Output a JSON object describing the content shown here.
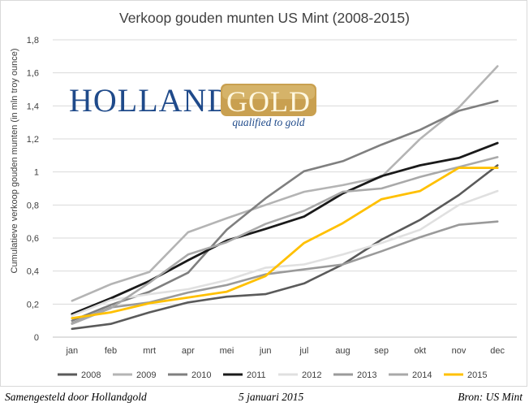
{
  "chart_data": {
    "type": "line",
    "title": "Verkoop gouden munten US Mint (2008-2015)",
    "xlabel": "",
    "ylabel": "Cumulatieve verkoop gouden munten (in mln troy ounce)",
    "categories": [
      "jan",
      "feb",
      "mrt",
      "apr",
      "mei",
      "jun",
      "jul",
      "aug",
      "sep",
      "okt",
      "nov",
      "dec"
    ],
    "ylim": [
      0,
      1.8
    ],
    "yticks": [
      0,
      0.2,
      0.4,
      0.6,
      0.8,
      1,
      1.2,
      1.4,
      1.6,
      1.8
    ],
    "ytick_labels": [
      "0",
      "0,2",
      "0,4",
      "0,6",
      "0,8",
      "1",
      "1,2",
      "1,4",
      "1,6",
      "1,8"
    ],
    "grid": true,
    "legend_position": "bottom",
    "series": [
      {
        "name": "2008",
        "color": "#5a5a5a",
        "width": 2.6,
        "values": [
          0.05,
          0.08,
          0.15,
          0.21,
          0.245,
          0.26,
          0.325,
          0.44,
          0.59,
          0.71,
          0.86,
          1.04
        ]
      },
      {
        "name": "2009",
        "color": "#b4b4b4",
        "width": 2.6,
        "values": [
          0.22,
          0.32,
          0.395,
          0.635,
          0.72,
          0.8,
          0.88,
          0.92,
          0.97,
          1.2,
          1.39,
          1.64
        ]
      },
      {
        "name": "2010",
        "color": "#7f7f7f",
        "width": 2.6,
        "values": [
          0.1,
          0.195,
          0.275,
          0.39,
          0.65,
          0.84,
          1.005,
          1.065,
          1.165,
          1.255,
          1.37,
          1.43
        ]
      },
      {
        "name": "2011",
        "color": "#1a1a1a",
        "width": 2.8,
        "values": [
          0.14,
          0.235,
          0.34,
          0.465,
          0.585,
          0.655,
          0.73,
          0.87,
          0.975,
          1.04,
          1.085,
          1.175
        ]
      },
      {
        "name": "2012",
        "color": "#e0e0e0",
        "width": 2.6,
        "values": [
          0.13,
          0.225,
          0.26,
          0.29,
          0.345,
          0.42,
          0.44,
          0.5,
          0.57,
          0.65,
          0.8,
          0.885
        ]
      },
      {
        "name": "2013",
        "color": "#9a9a9a",
        "width": 2.6,
        "values": [
          0.085,
          0.18,
          0.21,
          0.27,
          0.315,
          0.38,
          0.41,
          0.44,
          0.52,
          0.605,
          0.68,
          0.7
        ]
      },
      {
        "name": "2014",
        "color": "#a9a9a9",
        "width": 2.6,
        "values": [
          0.08,
          0.175,
          0.33,
          0.5,
          0.575,
          0.685,
          0.765,
          0.88,
          0.9,
          0.97,
          1.03,
          1.09
        ]
      },
      {
        "name": "2015",
        "color": "#ffc000",
        "width": 2.8,
        "values": [
          0.115,
          0.15,
          0.205,
          0.24,
          0.275,
          0.37,
          0.57,
          0.69,
          0.835,
          0.885,
          1.025,
          1.025
        ]
      }
    ]
  },
  "logo": {
    "word1": "HOLLAND",
    "word2": "GOLD",
    "tagline": "qualified to gold",
    "color_blue": "#1f4a8a",
    "color_gold": "#c9a050"
  },
  "footer": {
    "left": "Samengesteld door Hollandgold",
    "middle": "5 januari 2015",
    "right": "Bron: US Mint"
  }
}
